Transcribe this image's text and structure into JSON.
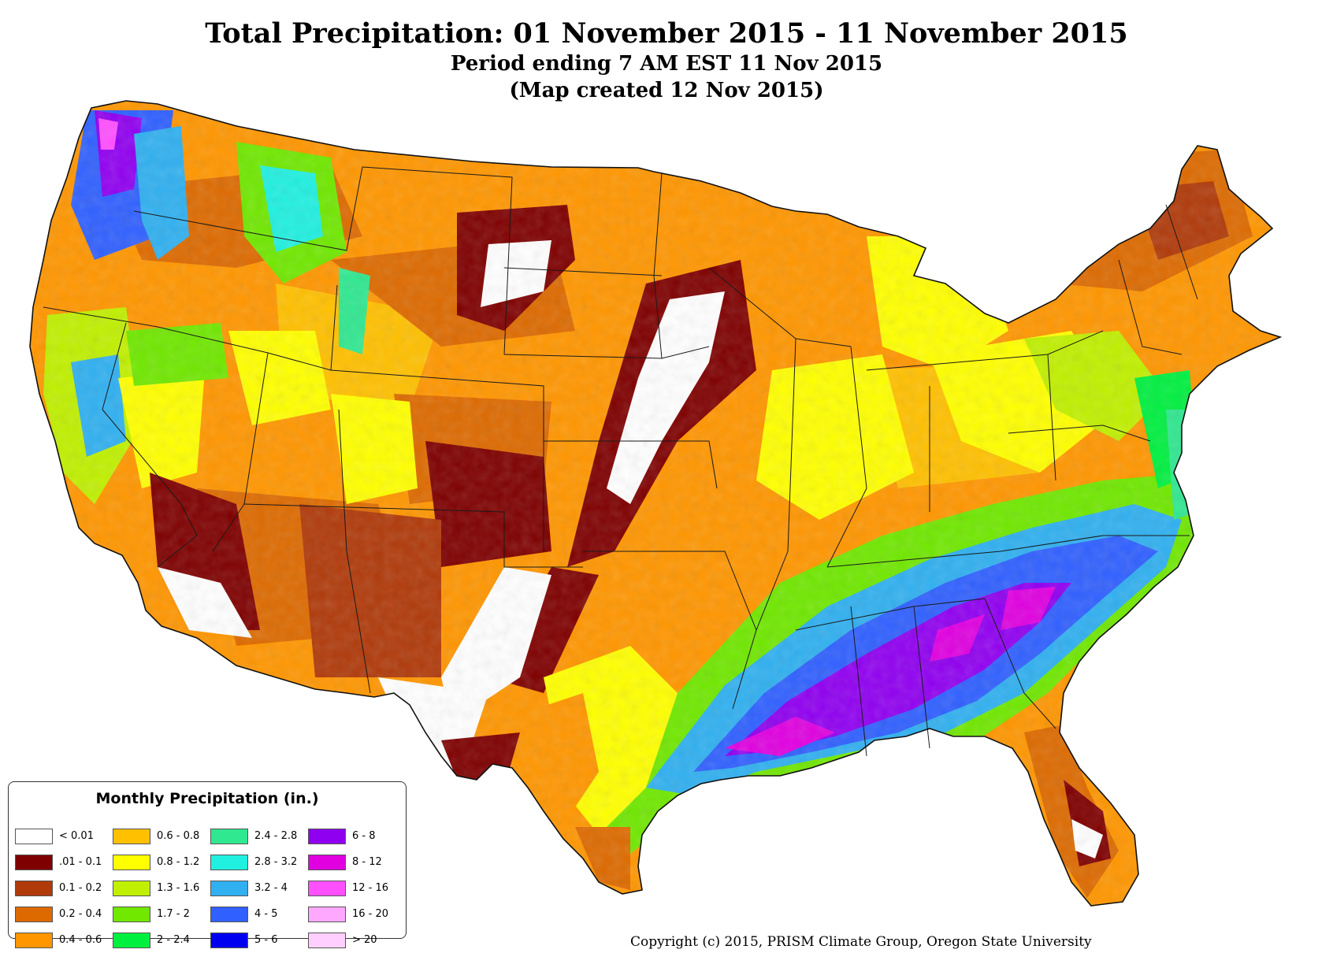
{
  "title": "Total Precipitation: 01 November 2015 - 11 November 2015",
  "subtitle": "Period ending 7 AM EST 11 Nov 2015",
  "created": "(Map created 12 Nov 2015)",
  "legend": {
    "title": "Monthly Precipitation (in.)",
    "items": [
      {
        "label": "< 0.01",
        "color": "#ffffff"
      },
      {
        "label": ".01 - 0.1",
        "color": "#7f0000"
      },
      {
        "label": "0.1 - 0.2",
        "color": "#b03a0a"
      },
      {
        "label": "0.2 - 0.4",
        "color": "#dd6a00"
      },
      {
        "label": "0.4 - 0.6",
        "color": "#ff9600"
      },
      {
        "label": "0.6 - 0.8",
        "color": "#ffc000"
      },
      {
        "label": "0.8 - 1.2",
        "color": "#ffff00"
      },
      {
        "label": "1.3 - 1.6",
        "color": "#c0f000"
      },
      {
        "label": "1.7 - 2",
        "color": "#70e800"
      },
      {
        "label": "2 - 2.4",
        "color": "#00f040"
      },
      {
        "label": "2.4 - 2.8",
        "color": "#30e890"
      },
      {
        "label": "2.8 - 3.2",
        "color": "#20f0e0"
      },
      {
        "label": "3.2 - 4",
        "color": "#30b0f0"
      },
      {
        "label": "4 - 5",
        "color": "#3060ff"
      },
      {
        "label": "5 - 6",
        "color": "#0000f0"
      },
      {
        "label": "6 - 8",
        "color": "#9000f0"
      },
      {
        "label": "8 - 12",
        "color": "#e000e0"
      },
      {
        "label": "12 - 16",
        "color": "#ff50ff"
      },
      {
        "label": "16 - 20",
        "color": "#ffa8ff"
      },
      {
        "label": "> 20",
        "color": "#ffd0ff"
      }
    ]
  },
  "copyright": "Copyright (c) 2015, PRISM Climate Group, Oregon State University"
}
